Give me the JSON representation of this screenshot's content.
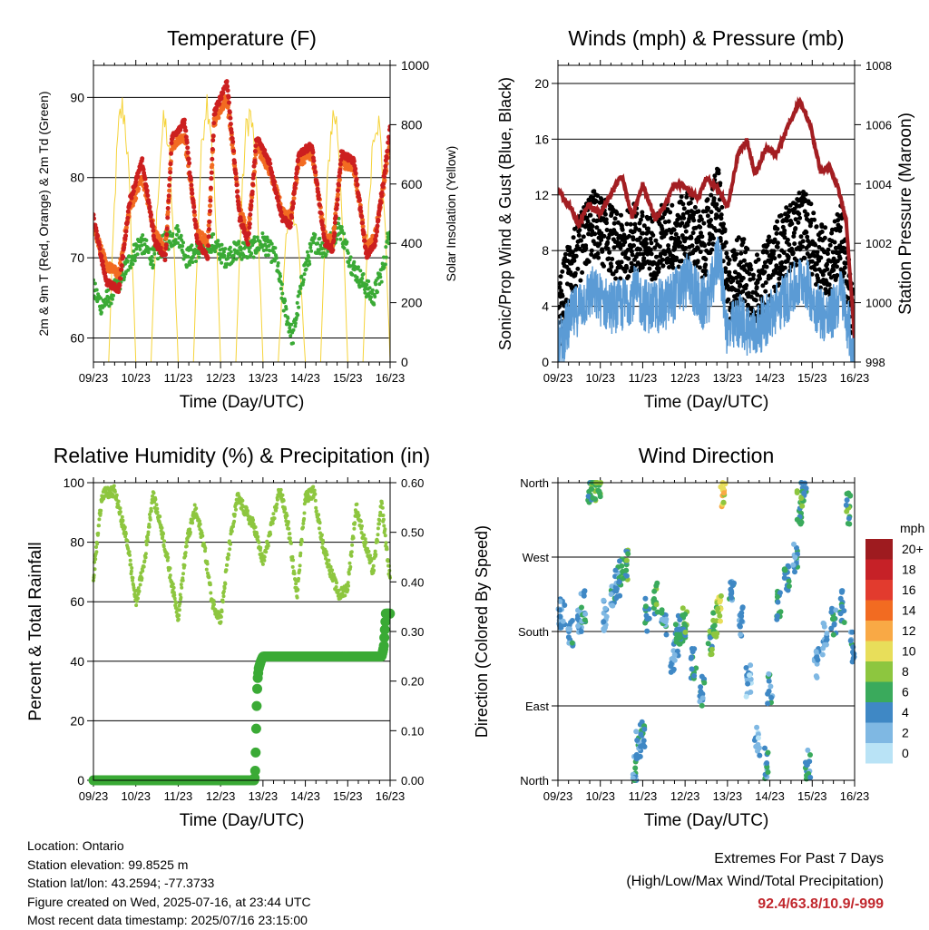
{
  "x_ticks": [
    "09/23",
    "10/23",
    "11/23",
    "12/23",
    "13/23",
    "14/23",
    "15/23",
    "16/23"
  ],
  "x_axis_title": "Time (Day/UTC)",
  "colors": {
    "temp_2m": "#cc1f1f",
    "temp_9m": "#f26b21",
    "dewpoint": "#3aaa35",
    "insolation": "#f5d33a",
    "gust": "#000000",
    "wind": "#5b9bd5",
    "pressure": "#a31e22",
    "rh": "#8dc63f",
    "precip": "#3aaa35"
  },
  "chart_data": [
    {
      "type": "line",
      "title": "Temperature (F)",
      "xlabel": "Time (Day/UTC)",
      "ylabel": "2m & 9m T (Red, Orange) & 2m Td (Green)",
      "ylabel_right": "Solar Insolation (Yellow)",
      "ylim": [
        57,
        94
      ],
      "ylim_right": [
        0,
        1000
      ],
      "yticks": [
        60,
        70,
        80,
        90
      ],
      "yticks_right": [
        0,
        200,
        400,
        600,
        800,
        1000
      ],
      "grid_y": true,
      "series": [
        {
          "name": "2m T (Red)",
          "x": [
            9.0,
            9.3,
            9.6,
            9.85,
            10.15,
            10.45,
            10.7,
            10.85,
            11.15,
            11.45,
            11.7,
            11.85,
            12.15,
            12.45,
            12.65,
            12.85,
            13.15,
            13.45,
            13.65,
            13.85,
            14.15,
            14.45,
            14.65,
            14.85,
            15.15,
            15.45,
            15.65,
            15.85,
            16.0
          ],
          "y": [
            75,
            67,
            66,
            77,
            82,
            72,
            70,
            85,
            87,
            72,
            70,
            88,
            92,
            75,
            72,
            85,
            82,
            75,
            74,
            83,
            84,
            72,
            71,
            83,
            82,
            70,
            72,
            80,
            86
          ]
        },
        {
          "name": "9m T (Orange)",
          "x": [
            9.0,
            9.3,
            9.6,
            9.85,
            10.15,
            10.45,
            10.7,
            10.85,
            11.15,
            11.45,
            11.7,
            11.85,
            12.15,
            12.45,
            12.65,
            12.85,
            13.15,
            13.45,
            13.65,
            13.85,
            14.15,
            14.45,
            14.65,
            14.85,
            15.15,
            15.45,
            15.65,
            15.85,
            16.0
          ],
          "y": [
            74,
            69,
            68,
            76,
            80,
            73,
            71,
            84,
            85,
            73,
            72,
            87,
            90,
            76,
            73,
            84,
            81,
            76,
            75,
            82,
            83,
            73,
            72,
            82,
            81,
            71,
            73,
            79,
            85
          ]
        },
        {
          "name": "2m Td (Green)",
          "x": [
            9.0,
            9.2,
            9.5,
            9.8,
            10.1,
            10.4,
            10.7,
            11.0,
            11.2,
            11.5,
            11.8,
            12.1,
            12.4,
            12.7,
            13.0,
            13.3,
            13.5,
            13.7,
            13.95,
            14.2,
            14.5,
            14.8,
            15.1,
            15.35,
            15.6,
            15.85,
            16.0
          ],
          "y": [
            66,
            64,
            66,
            69,
            72,
            70,
            72,
            73,
            70,
            71,
            72,
            70,
            71,
            71,
            72,
            70,
            64,
            60,
            68,
            72,
            71,
            74,
            69,
            67,
            65,
            69,
            74
          ]
        },
        {
          "name": "Solar Insolation (Yellow)",
          "peaks": [
            {
              "x": 9.68,
              "y": 920
            },
            {
              "x": 10.68,
              "y": 860
            },
            {
              "x": 11.68,
              "y": 950
            },
            {
              "x": 12.68,
              "y": 900
            },
            {
              "x": 13.68,
              "y": 560
            },
            {
              "x": 14.68,
              "y": 900
            },
            {
              "x": 15.68,
              "y": 890
            }
          ]
        }
      ]
    },
    {
      "type": "scatter",
      "title": "Winds (mph) & Pressure (mb)",
      "xlabel": "Time (Day/UTC)",
      "ylabel": "Sonic/Prop Wind & Gust (Blue, Black)",
      "ylabel_right": "Station Pressure (Maroon)",
      "ylim": [
        0,
        21.3
      ],
      "ylim_right": [
        998,
        1008
      ],
      "yticks": [
        0,
        4,
        8,
        12,
        16,
        20
      ],
      "yticks_right": [
        998,
        1000,
        1002,
        1004,
        1006,
        1008
      ],
      "grid_y": true,
      "series": [
        {
          "name": "Gust (Black)",
          "x": [
            9.0,
            9.3,
            9.5,
            9.8,
            10.2,
            10.5,
            10.8,
            11.1,
            11.5,
            11.8,
            12.1,
            12.4,
            12.6,
            12.8,
            13.0,
            13.3,
            13.6,
            13.9,
            14.2,
            14.5,
            14.8,
            15.1,
            15.4,
            15.7,
            15.95
          ],
          "y": [
            3,
            7,
            8,
            10,
            9,
            8,
            9,
            8,
            9,
            9,
            10,
            8,
            10,
            12,
            5,
            7,
            5,
            6,
            8,
            9,
            10,
            8,
            7,
            9,
            3
          ]
        },
        {
          "name": "Wind (Blue)",
          "x": [
            9.0,
            9.3,
            9.5,
            9.8,
            10.2,
            10.5,
            10.8,
            11.1,
            11.5,
            11.8,
            12.1,
            12.4,
            12.6,
            12.8,
            13.0,
            13.3,
            13.6,
            13.9,
            14.2,
            14.5,
            14.8,
            15.1,
            15.4,
            15.7,
            15.95
          ],
          "y": [
            1,
            3,
            4,
            5,
            4,
            4,
            5,
            4,
            4,
            5,
            6,
            4,
            5,
            8,
            2,
            3,
            2,
            3,
            4,
            5,
            6,
            4,
            3,
            5,
            1
          ]
        },
        {
          "name": "Station Pressure (Maroon)",
          "x": [
            9.0,
            9.3,
            9.5,
            9.7,
            10.0,
            10.3,
            10.5,
            10.75,
            11.0,
            11.3,
            11.5,
            11.75,
            12.0,
            12.3,
            12.5,
            12.75,
            13.0,
            13.25,
            13.45,
            13.65,
            13.9,
            14.15,
            14.45,
            14.7,
            14.95,
            15.2,
            15.4,
            15.6,
            15.8,
            16.0
          ],
          "y": [
            1003.8,
            1003.2,
            1002.6,
            1003.3,
            1003.0,
            1003.8,
            1004.3,
            1002.9,
            1004.0,
            1002.8,
            1003.2,
            1004.0,
            1003.9,
            1003.5,
            1004.2,
            1003.9,
            1003.2,
            1005.0,
            1005.5,
            1004.3,
            1005.2,
            1005.0,
            1006.0,
            1006.8,
            1006.0,
            1004.4,
            1004.6,
            1003.9,
            1002.8,
            998.8
          ]
        }
      ]
    },
    {
      "type": "line",
      "title": "Relative Humidity (%) & Precipitation (in)",
      "xlabel": "Time (Day/UTC)",
      "ylabel": "Percent & Total Rainfall",
      "ylim": [
        0,
        100
      ],
      "ylim_right": [
        0,
        0.625
      ],
      "yticks": [
        0,
        20,
        40,
        60,
        80,
        100
      ],
      "yticks_right": [
        "0.00",
        "0.10",
        "0.20",
        "0.30",
        "0.40",
        "0.50",
        "0.60"
      ],
      "grid_y": true,
      "series": [
        {
          "name": "Relative Humidity",
          "x": [
            9.0,
            9.2,
            9.5,
            9.8,
            10.0,
            10.2,
            10.4,
            10.6,
            10.8,
            11.0,
            11.2,
            11.4,
            11.6,
            11.8,
            12.0,
            12.2,
            12.4,
            12.6,
            12.8,
            13.0,
            13.2,
            13.4,
            13.6,
            13.8,
            14.0,
            14.2,
            14.4,
            14.6,
            14.8,
            15.0,
            15.2,
            15.4,
            15.6,
            15.8,
            16.0
          ],
          "y": [
            68,
            96,
            97,
            80,
            60,
            73,
            96,
            85,
            70,
            55,
            80,
            91,
            80,
            60,
            54,
            78,
            95,
            90,
            85,
            73,
            85,
            98,
            85,
            62,
            95,
            97,
            80,
            70,
            62,
            65,
            92,
            80,
            70,
            93,
            67
          ]
        },
        {
          "name": "Total Rainfall",
          "x": [
            9.0,
            12.8,
            12.82,
            12.85,
            12.87,
            12.9,
            12.95,
            13.0,
            15.8,
            15.85,
            15.9,
            16.0
          ],
          "y": [
            0.0,
            0.0,
            0.025,
            0.15,
            0.21,
            0.235,
            0.25,
            0.26,
            0.26,
            0.28,
            0.35,
            0.35
          ]
        }
      ]
    },
    {
      "type": "scatter",
      "title": "Wind Direction",
      "xlabel": "Time (Day/UTC)",
      "ylabel": "Direction (Colored By Speed)",
      "ylim": [
        0,
        360
      ],
      "yticks": [
        "North",
        "East",
        "South",
        "West",
        "North"
      ],
      "grid_y": true,
      "colorbar": {
        "title": "mph",
        "labels": [
          "20+",
          "18",
          "16",
          "14",
          "12",
          "10",
          "8",
          "6",
          "4",
          "2",
          "0"
        ],
        "colors": [
          "#9e1b1f",
          "#c62127",
          "#e23b2e",
          "#f26b21",
          "#f9a945",
          "#e8de5a",
          "#8dc63f",
          "#3aaa5c",
          "#3f88c5",
          "#7fb8e3",
          "#b9e3f6"
        ]
      },
      "series": [
        {
          "name": "Direction",
          "x": [
            9.0,
            9.1,
            9.3,
            9.5,
            9.6,
            9.75,
            9.85,
            9.95,
            10.1,
            10.3,
            10.4,
            10.5,
            10.6,
            10.8,
            10.9,
            11.0,
            11.1,
            11.3,
            11.5,
            11.7,
            11.8,
            11.9,
            12.0,
            12.2,
            12.4,
            12.6,
            12.7,
            12.8,
            12.9,
            13.1,
            13.3,
            13.5,
            13.7,
            13.9,
            14.0,
            14.2,
            14.4,
            14.6,
            14.7,
            14.8,
            14.9,
            15.1,
            15.3,
            15.5,
            15.7,
            15.85,
            15.95
          ],
          "y": [
            190,
            200,
            180,
            190,
            210,
            350,
            355,
            355,
            200,
            230,
            240,
            250,
            260,
            15,
            40,
            60,
            200,
            220,
            190,
            150,
            170,
            180,
            190,
            140,
            110,
            170,
            190,
            210,
            350,
            230,
            190,
            120,
            50,
            20,
            110,
            210,
            240,
            270,
            330,
            350,
            20,
            140,
            170,
            190,
            210,
            330,
            160
          ],
          "speed": [
            2,
            3,
            4,
            3,
            4,
            6,
            6,
            7,
            3,
            4,
            4,
            5,
            6,
            4,
            4,
            5,
            5,
            6,
            4,
            3,
            4,
            5,
            6,
            5,
            4,
            6,
            7,
            9,
            10,
            4,
            3,
            2,
            2,
            4,
            4,
            5,
            4,
            4,
            6,
            6,
            4,
            3,
            3,
            4,
            4,
            6,
            4
          ]
        }
      ]
    }
  ],
  "info": {
    "location": "Location: Ontario",
    "elevation": "Station elevation: 99.8525 m",
    "latlon": "Station lat/lon: 43.2594; -77.3733",
    "created": "Figure created on Wed, 2025-07-16, at 23:44 UTC",
    "recent": "Most recent data timestamp: 2025/07/16 23:15:00"
  },
  "extremes": {
    "title": "Extremes For Past 7 Days",
    "subtitle": "(High/Low/Max Wind/Total Precipitation)",
    "values": "92.4/63.8/10.9/-999"
  }
}
